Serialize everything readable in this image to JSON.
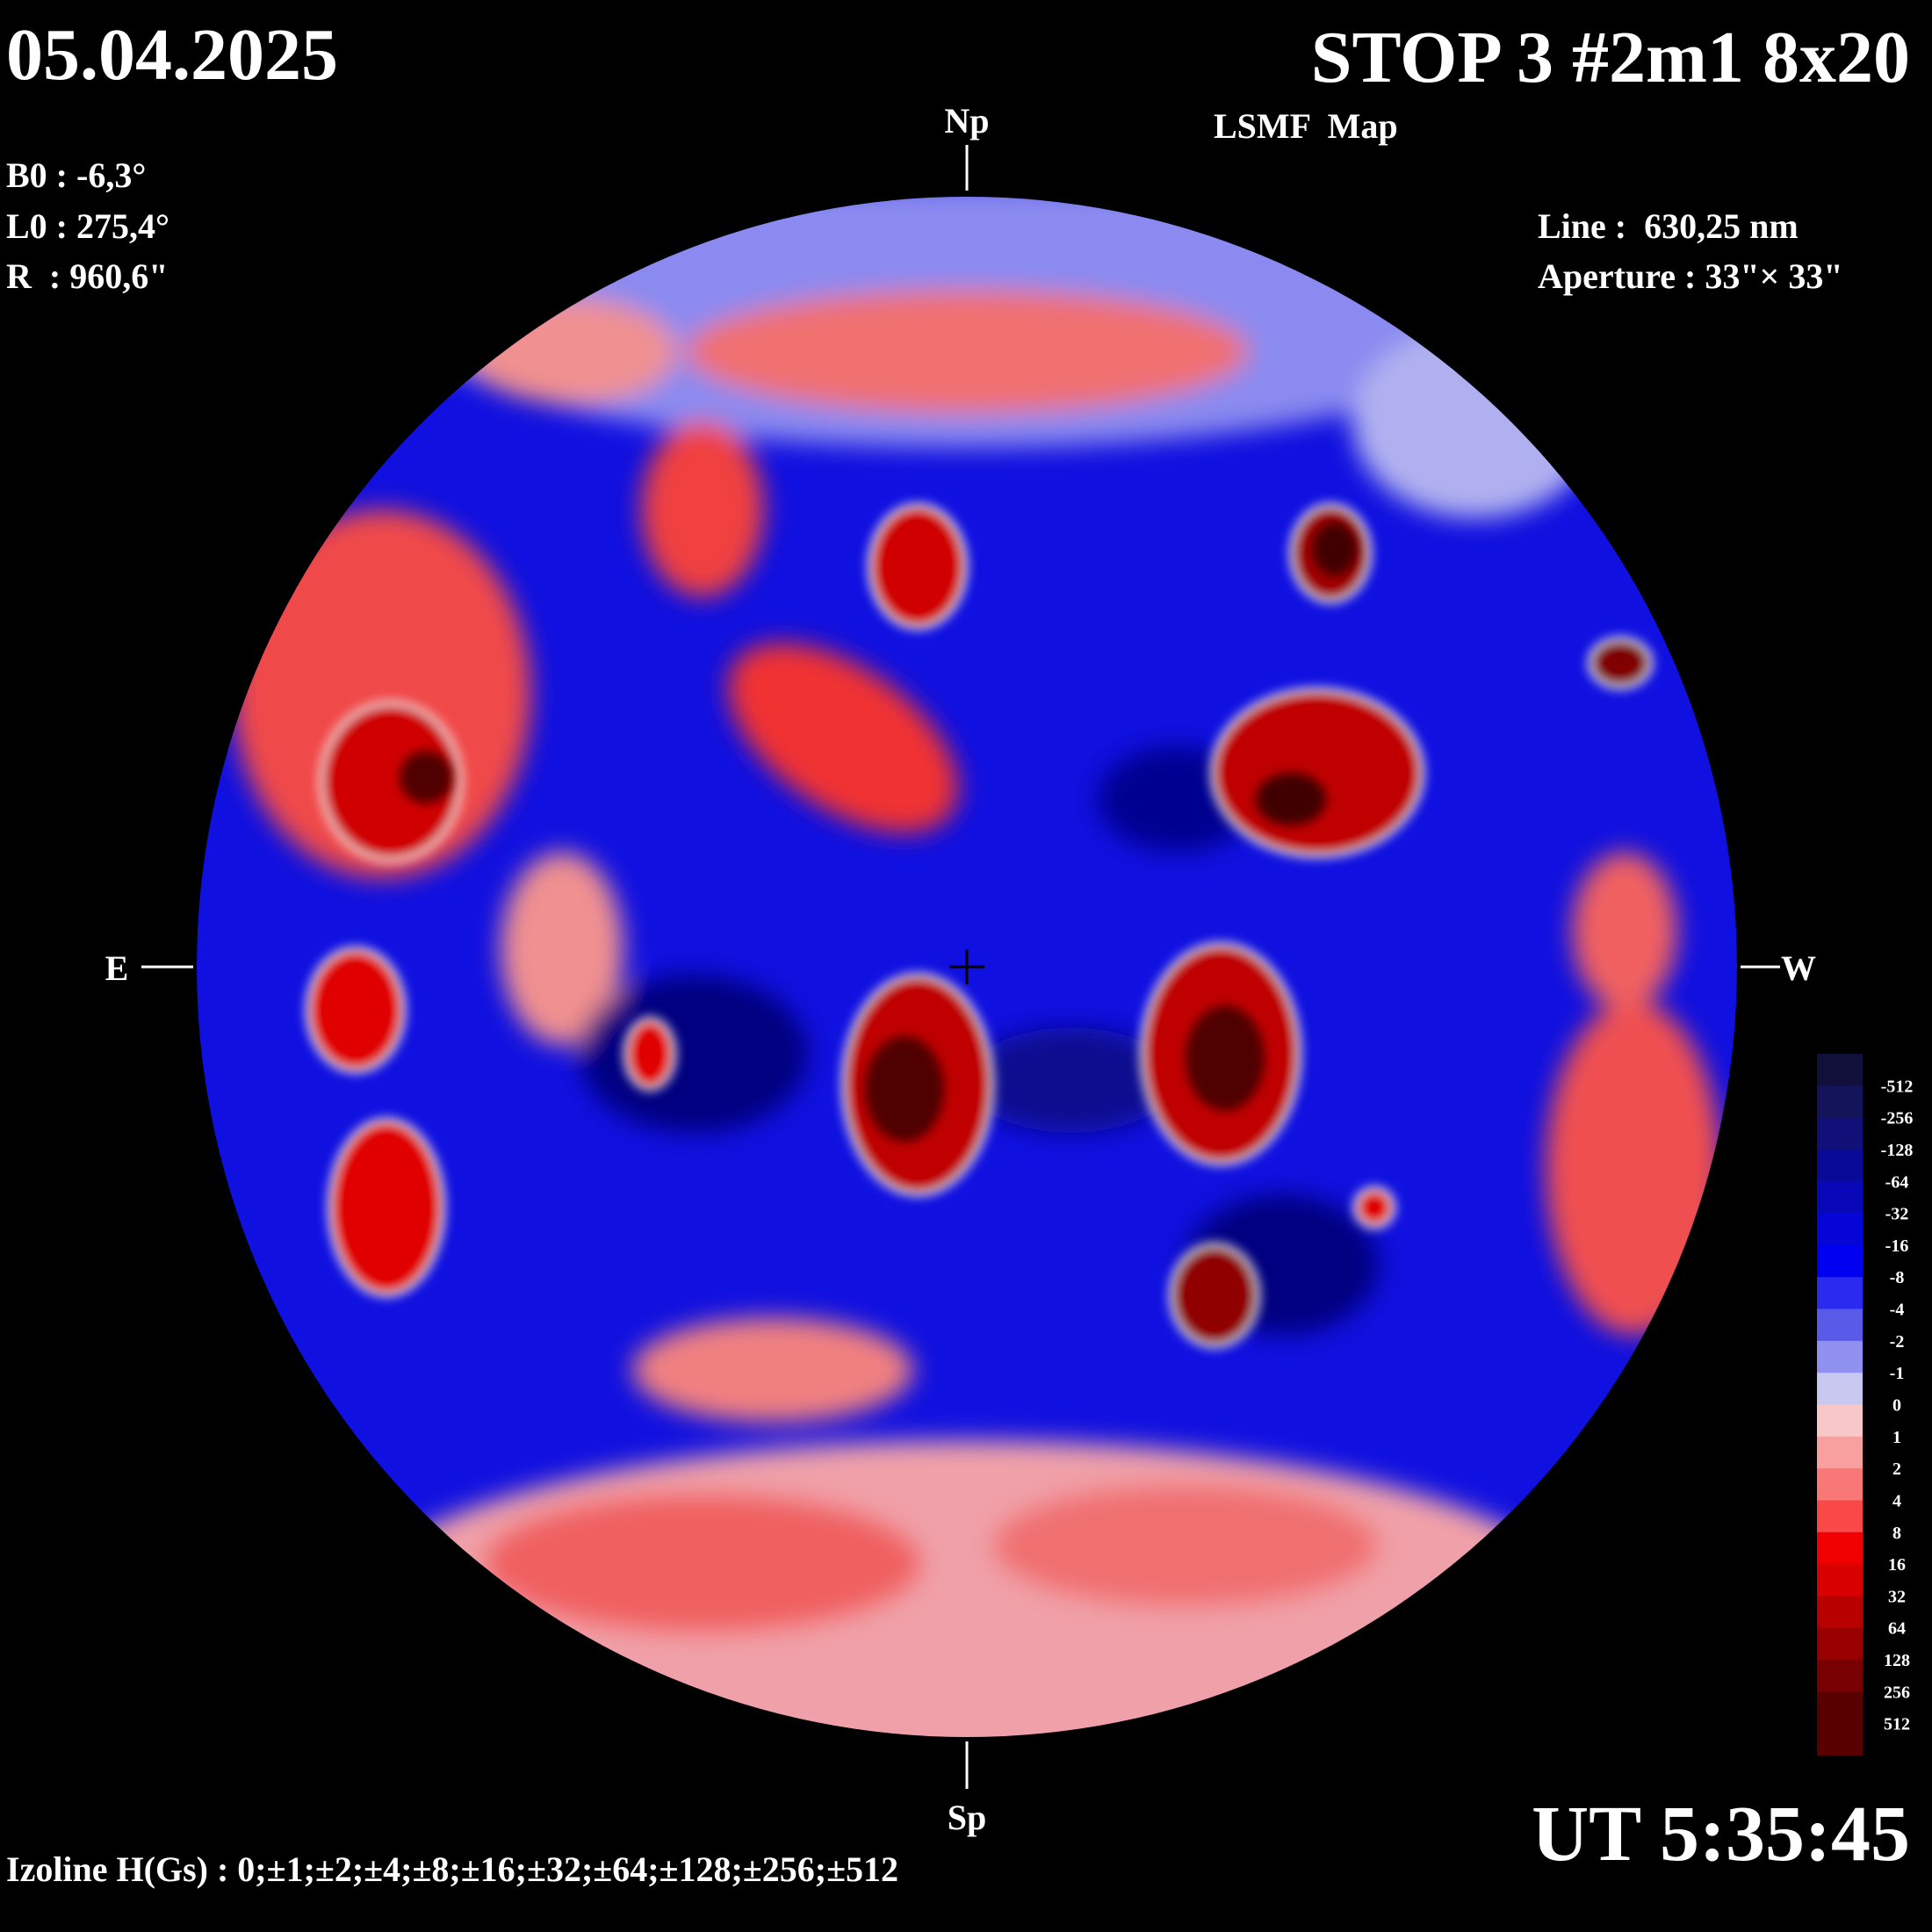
{
  "header": {
    "date": "05.04.2025",
    "title": "STOP 3 #2m1 8x20",
    "subtitle": "LSMF  Map"
  },
  "params": [
    "B0 : -6,3°",
    "L0 : 275,4°",
    "R  : 960,6\""
  ],
  "instrument": [
    "Line :  630,25 nm",
    "Aperture : 33\"× 33\""
  ],
  "directions": {
    "north": "Np",
    "south": "Sp",
    "east": "E",
    "west": "W"
  },
  "colorbar": {
    "labels": [
      -512,
      -256,
      -128,
      -64,
      -32,
      -16,
      -8,
      -4,
      -2,
      -1,
      0,
      1,
      2,
      4,
      8,
      16,
      32,
      64,
      128,
      256,
      512
    ],
    "colors": [
      "#10103a",
      "#14145a",
      "#101078",
      "#0a0a98",
      "#0808b8",
      "#0505d8",
      "#0000f0",
      "#2a2af0",
      "#5a5ae8",
      "#9090f0",
      "#c8c8f0",
      "#f8c8c8",
      "#f8a0a0",
      "#f87878",
      "#f84848",
      "#f00000",
      "#d80000",
      "#b80000",
      "#980000",
      "#780000",
      "#580000"
    ]
  },
  "footer": {
    "izoline": "Izoline H(Gs) : 0;±1;±2;±4;±8;±16;±32;±64;±128;±256;±512",
    "time": "UT 5:35:45"
  }
}
